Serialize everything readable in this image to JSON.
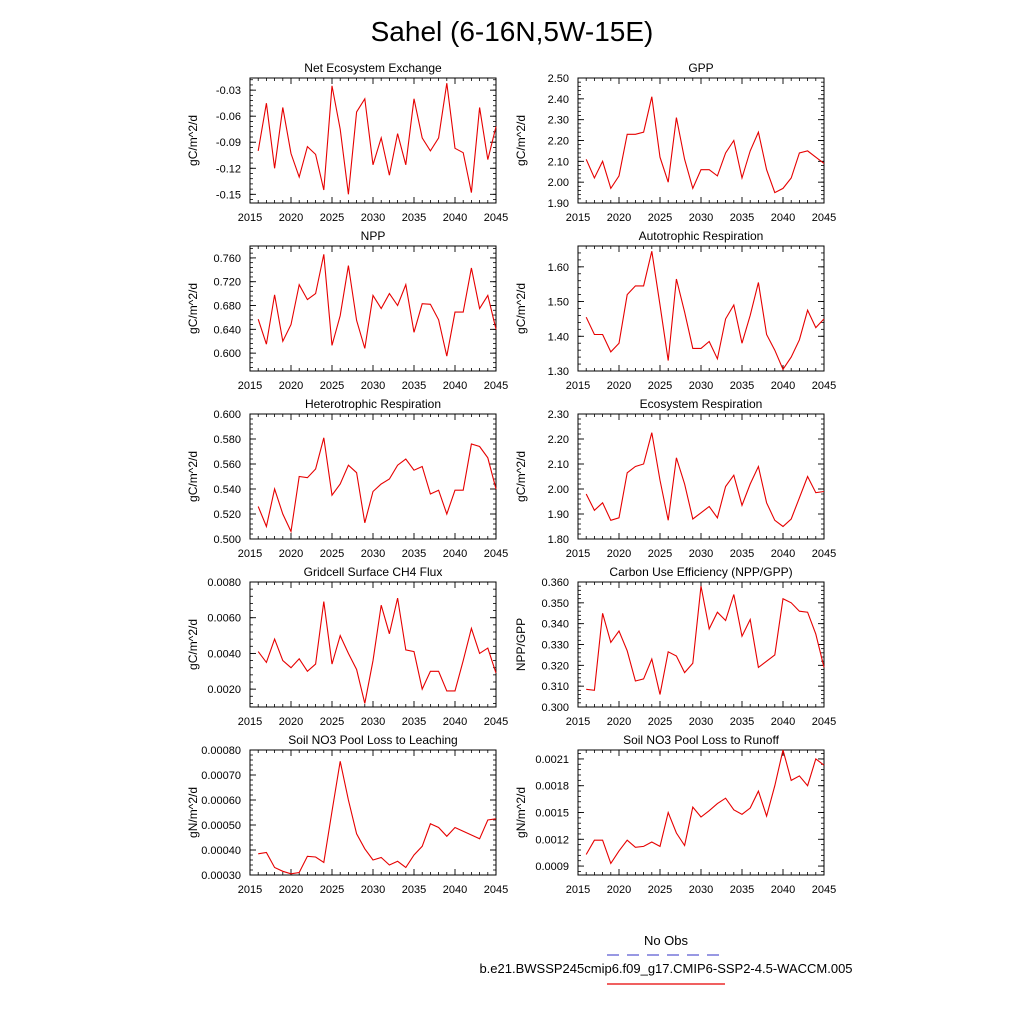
{
  "page_title": "Sahel (6-16N,5W-15E)",
  "legend": {
    "obs_label": "No Obs",
    "obs_color": "#5a5ad2",
    "model_label": "b.e21.BWSSP245cmip6.f09_g17.CMIP6-SSP2-4.5-WACCM.005",
    "model_color": "#e60000"
  },
  "chart_data": [
    {
      "type": "line",
      "title": "Net Ecosystem Exchange",
      "ylabel": "gC/m^2/d",
      "xlim": [
        2015,
        2045
      ],
      "ylim": [
        -0.16,
        -0.016
      ],
      "xticks": [
        2015,
        2020,
        2025,
        2030,
        2035,
        2040,
        2045
      ],
      "xtick_labels": [
        "2015",
        "2020",
        "2025",
        "2030",
        "2035",
        "2040",
        "2045"
      ],
      "yticks": [
        -0.03,
        -0.06,
        -0.09,
        -0.12,
        -0.15
      ],
      "ytick_labels": [
        "-0.03",
        "-0.06",
        "-0.09",
        "-0.12",
        "-0.15"
      ],
      "x": [
        2016,
        2017,
        2018,
        2019,
        2020,
        2021,
        2022,
        2023,
        2024,
        2025,
        2026,
        2027,
        2028,
        2029,
        2030,
        2031,
        2032,
        2033,
        2034,
        2035,
        2036,
        2037,
        2038,
        2039,
        2040,
        2041,
        2042,
        2043,
        2044,
        2045
      ],
      "series": [
        {
          "name": "b.e21.BWSSP245cmip6.f09_g17.CMIP6-SSP2-4.5-WACCM.005",
          "values": [
            -0.1,
            -0.045,
            -0.12,
            -0.05,
            -0.103,
            -0.13,
            -0.095,
            -0.104,
            -0.145,
            -0.025,
            -0.075,
            -0.15,
            -0.055,
            -0.04,
            -0.116,
            -0.085,
            -0.128,
            -0.08,
            -0.116,
            -0.04,
            -0.085,
            -0.1,
            -0.085,
            -0.022,
            -0.097,
            -0.102,
            -0.148,
            -0.05,
            -0.11,
            -0.072
          ]
        }
      ]
    },
    {
      "type": "line",
      "title": "GPP",
      "ylabel": "gC/m^2/d",
      "xlim": [
        2015,
        2045
      ],
      "ylim": [
        1.9,
        2.5
      ],
      "xticks": [
        2015,
        2020,
        2025,
        2030,
        2035,
        2040,
        2045
      ],
      "xtick_labels": [
        "2015",
        "2020",
        "2025",
        "2030",
        "2035",
        "2040",
        "2045"
      ],
      "yticks": [
        1.9,
        2.0,
        2.1,
        2.2,
        2.3,
        2.4,
        2.5
      ],
      "ytick_labels": [
        "1.90",
        "2.00",
        "2.10",
        "2.20",
        "2.30",
        "2.40",
        "2.50"
      ],
      "x": [
        2016,
        2017,
        2018,
        2019,
        2020,
        2021,
        2022,
        2023,
        2024,
        2025,
        2026,
        2027,
        2028,
        2029,
        2030,
        2031,
        2032,
        2033,
        2034,
        2035,
        2036,
        2037,
        2038,
        2039,
        2040,
        2041,
        2042,
        2043,
        2044,
        2045
      ],
      "series": [
        {
          "name": "b.e21.BWSSP245cmip6.f09_g17.CMIP6-SSP2-4.5-WACCM.005",
          "values": [
            2.11,
            2.02,
            2.1,
            1.97,
            2.03,
            2.23,
            2.23,
            2.24,
            2.41,
            2.12,
            2.0,
            2.31,
            2.11,
            1.97,
            2.06,
            2.06,
            2.03,
            2.14,
            2.2,
            2.02,
            2.15,
            2.24,
            2.06,
            1.95,
            1.97,
            2.02,
            2.14,
            2.15,
            2.12,
            2.09
          ]
        }
      ]
    },
    {
      "type": "line",
      "title": "NPP",
      "ylabel": "gC/m^2/d",
      "xlim": [
        2015,
        2045
      ],
      "ylim": [
        0.57,
        0.78
      ],
      "xticks": [
        2015,
        2020,
        2025,
        2030,
        2035,
        2040,
        2045
      ],
      "xtick_labels": [
        "2015",
        "2020",
        "2025",
        "2030",
        "2035",
        "2040",
        "2045"
      ],
      "yticks": [
        0.6,
        0.64,
        0.68,
        0.72,
        0.76
      ],
      "ytick_labels": [
        "0.600",
        "0.640",
        "0.680",
        "0.720",
        "0.760"
      ],
      "x": [
        2016,
        2017,
        2018,
        2019,
        2020,
        2021,
        2022,
        2023,
        2024,
        2025,
        2026,
        2027,
        2028,
        2029,
        2030,
        2031,
        2032,
        2033,
        2034,
        2035,
        2036,
        2037,
        2038,
        2039,
        2040,
        2041,
        2042,
        2043,
        2044,
        2045
      ],
      "series": [
        {
          "name": "b.e21.BWSSP245cmip6.f09_g17.CMIP6-SSP2-4.5-WACCM.005",
          "values": [
            0.657,
            0.615,
            0.698,
            0.62,
            0.648,
            0.715,
            0.69,
            0.7,
            0.766,
            0.613,
            0.663,
            0.747,
            0.655,
            0.608,
            0.697,
            0.675,
            0.7,
            0.68,
            0.715,
            0.635,
            0.683,
            0.682,
            0.656,
            0.595,
            0.669,
            0.669,
            0.743,
            0.675,
            0.697,
            0.64
          ]
        }
      ]
    },
    {
      "type": "line",
      "title": "Autotrophic Respiration",
      "ylabel": "gC/m^2/d",
      "xlim": [
        2015,
        2045
      ],
      "ylim": [
        1.3,
        1.66
      ],
      "xticks": [
        2015,
        2020,
        2025,
        2030,
        2035,
        2040,
        2045
      ],
      "xtick_labels": [
        "2015",
        "2020",
        "2025",
        "2030",
        "2035",
        "2040",
        "2045"
      ],
      "yticks": [
        1.3,
        1.4,
        1.5,
        1.6
      ],
      "ytick_labels": [
        "1.30",
        "1.40",
        "1.50",
        "1.60"
      ],
      "x": [
        2016,
        2017,
        2018,
        2019,
        2020,
        2021,
        2022,
        2023,
        2024,
        2025,
        2026,
        2027,
        2028,
        2029,
        2030,
        2031,
        2032,
        2033,
        2034,
        2035,
        2036,
        2037,
        2038,
        2039,
        2040,
        2041,
        2042,
        2043,
        2044,
        2045
      ],
      "series": [
        {
          "name": "b.e21.BWSSP245cmip6.f09_g17.CMIP6-SSP2-4.5-WACCM.005",
          "values": [
            1.455,
            1.405,
            1.405,
            1.355,
            1.38,
            1.52,
            1.545,
            1.545,
            1.645,
            1.49,
            1.33,
            1.565,
            1.47,
            1.365,
            1.365,
            1.385,
            1.335,
            1.45,
            1.49,
            1.38,
            1.46,
            1.555,
            1.405,
            1.36,
            1.305,
            1.34,
            1.39,
            1.475,
            1.425,
            1.45
          ]
        }
      ]
    },
    {
      "type": "line",
      "title": "Heterotrophic Respiration",
      "ylabel": "gC/m^2/d",
      "xlim": [
        2015,
        2045
      ],
      "ylim": [
        0.5,
        0.6
      ],
      "xticks": [
        2015,
        2020,
        2025,
        2030,
        2035,
        2040,
        2045
      ],
      "xtick_labels": [
        "2015",
        "2020",
        "2025",
        "2030",
        "2035",
        "2040",
        "2045"
      ],
      "yticks": [
        0.5,
        0.52,
        0.54,
        0.56,
        0.58,
        0.6
      ],
      "ytick_labels": [
        "0.500",
        "0.520",
        "0.540",
        "0.560",
        "0.580",
        "0.600"
      ],
      "x": [
        2016,
        2017,
        2018,
        2019,
        2020,
        2021,
        2022,
        2023,
        2024,
        2025,
        2026,
        2027,
        2028,
        2029,
        2030,
        2031,
        2032,
        2033,
        2034,
        2035,
        2036,
        2037,
        2038,
        2039,
        2040,
        2041,
        2042,
        2043,
        2044,
        2045
      ],
      "series": [
        {
          "name": "b.e21.BWSSP245cmip6.f09_g17.CMIP6-SSP2-4.5-WACCM.005",
          "values": [
            0.526,
            0.51,
            0.54,
            0.52,
            0.506,
            0.55,
            0.549,
            0.556,
            0.581,
            0.535,
            0.544,
            0.559,
            0.553,
            0.513,
            0.538,
            0.544,
            0.548,
            0.559,
            0.564,
            0.555,
            0.558,
            0.536,
            0.539,
            0.52,
            0.539,
            0.539,
            0.576,
            0.574,
            0.565,
            0.54
          ]
        }
      ]
    },
    {
      "type": "line",
      "title": "Ecosystem Respiration",
      "ylabel": "gC/m^2/d",
      "xlim": [
        2015,
        2045
      ],
      "ylim": [
        1.8,
        2.3
      ],
      "xticks": [
        2015,
        2020,
        2025,
        2030,
        2035,
        2040,
        2045
      ],
      "xtick_labels": [
        "2015",
        "2020",
        "2025",
        "2030",
        "2035",
        "2040",
        "2045"
      ],
      "yticks": [
        1.8,
        1.9,
        2.0,
        2.1,
        2.2,
        2.3
      ],
      "ytick_labels": [
        "1.80",
        "1.90",
        "2.00",
        "2.10",
        "2.20",
        "2.30"
      ],
      "x": [
        2016,
        2017,
        2018,
        2019,
        2020,
        2021,
        2022,
        2023,
        2024,
        2025,
        2026,
        2027,
        2028,
        2029,
        2030,
        2031,
        2032,
        2033,
        2034,
        2035,
        2036,
        2037,
        2038,
        2039,
        2040,
        2041,
        2042,
        2043,
        2044,
        2045
      ],
      "series": [
        {
          "name": "b.e21.BWSSP245cmip6.f09_g17.CMIP6-SSP2-4.5-WACCM.005",
          "values": [
            1.98,
            1.915,
            1.945,
            1.875,
            1.885,
            2.065,
            2.09,
            2.1,
            2.225,
            2.035,
            1.875,
            2.125,
            2.02,
            1.88,
            1.905,
            1.93,
            1.885,
            2.01,
            2.055,
            1.935,
            2.02,
            2.09,
            1.945,
            1.875,
            1.85,
            1.88,
            1.965,
            2.05,
            1.985,
            1.99
          ]
        }
      ]
    },
    {
      "type": "line",
      "title": "Gridcell Surface CH4 Flux",
      "ylabel": "gC/m^2/d",
      "xlim": [
        2015,
        2045
      ],
      "ylim": [
        0.001,
        0.008
      ],
      "xticks": [
        2015,
        2020,
        2025,
        2030,
        2035,
        2040,
        2045
      ],
      "xtick_labels": [
        "2015",
        "2020",
        "2025",
        "2030",
        "2035",
        "2040",
        "2045"
      ],
      "yticks": [
        0.002,
        0.004,
        0.006,
        0.008
      ],
      "ytick_labels": [
        "0.0020",
        "0.0040",
        "0.0060",
        "0.0080"
      ],
      "x": [
        2016,
        2017,
        2018,
        2019,
        2020,
        2021,
        2022,
        2023,
        2024,
        2025,
        2026,
        2027,
        2028,
        2029,
        2030,
        2031,
        2032,
        2033,
        2034,
        2035,
        2036,
        2037,
        2038,
        2039,
        2040,
        2041,
        2042,
        2043,
        2044,
        2045
      ],
      "series": [
        {
          "name": "b.e21.BWSSP245cmip6.f09_g17.CMIP6-SSP2-4.5-WACCM.005",
          "values": [
            0.0041,
            0.0035,
            0.0048,
            0.0036,
            0.0032,
            0.0037,
            0.003,
            0.0034,
            0.0069,
            0.0034,
            0.005,
            0.004,
            0.0031,
            0.0012,
            0.0036,
            0.0067,
            0.0051,
            0.0071,
            0.0042,
            0.0041,
            0.002,
            0.003,
            0.003,
            0.0019,
            0.0019,
            0.0036,
            0.0054,
            0.004,
            0.0043,
            0.0029
          ]
        }
      ]
    },
    {
      "type": "line",
      "title": "Carbon Use Efficiency (NPP/GPP)",
      "ylabel": "NPP/GPP",
      "xlim": [
        2015,
        2045
      ],
      "ylim": [
        0.3,
        0.36
      ],
      "xticks": [
        2015,
        2020,
        2025,
        2030,
        2035,
        2040,
        2045
      ],
      "xtick_labels": [
        "2015",
        "2020",
        "2025",
        "2030",
        "2035",
        "2040",
        "2045"
      ],
      "yticks": [
        0.3,
        0.31,
        0.32,
        0.33,
        0.34,
        0.35,
        0.36
      ],
      "ytick_labels": [
        "0.300",
        "0.310",
        "0.320",
        "0.330",
        "0.340",
        "0.350",
        "0.360"
      ],
      "x": [
        2016,
        2017,
        2018,
        2019,
        2020,
        2021,
        2022,
        2023,
        2024,
        2025,
        2026,
        2027,
        2028,
        2029,
        2030,
        2031,
        2032,
        2033,
        2034,
        2035,
        2036,
        2037,
        2038,
        2039,
        2040,
        2041,
        2042,
        2043,
        2044,
        2045
      ],
      "series": [
        {
          "name": "b.e21.BWSSP245cmip6.f09_g17.CMIP6-SSP2-4.5-WACCM.005",
          "values": [
            0.3085,
            0.308,
            0.345,
            0.331,
            0.3365,
            0.327,
            0.3125,
            0.3135,
            0.323,
            0.306,
            0.3265,
            0.3245,
            0.3165,
            0.321,
            0.358,
            0.3375,
            0.3455,
            0.3415,
            0.354,
            0.334,
            0.342,
            0.319,
            0.322,
            0.325,
            0.352,
            0.35,
            0.346,
            0.3455,
            0.335,
            0.319
          ]
        }
      ]
    },
    {
      "type": "line",
      "title": "Soil NO3 Pool Loss to Leaching",
      "ylabel": "gN/m^2/d",
      "xlim": [
        2015,
        2045
      ],
      "ylim": [
        0.0003,
        0.0008
      ],
      "xticks": [
        2015,
        2020,
        2025,
        2030,
        2035,
        2040,
        2045
      ],
      "xtick_labels": [
        "2015",
        "2020",
        "2025",
        "2030",
        "2035",
        "2040",
        "2045"
      ],
      "yticks": [
        0.0003,
        0.0004,
        0.0005,
        0.0006,
        0.0007,
        0.0008
      ],
      "ytick_labels": [
        "0.00030",
        "0.00040",
        "0.00050",
        "0.00060",
        "0.00070",
        "0.00080"
      ],
      "x": [
        2016,
        2017,
        2018,
        2019,
        2020,
        2021,
        2022,
        2023,
        2024,
        2025,
        2026,
        2027,
        2028,
        2029,
        2030,
        2031,
        2032,
        2033,
        2034,
        2035,
        2036,
        2037,
        2038,
        2039,
        2040,
        2041,
        2042,
        2043,
        2044,
        2045
      ],
      "series": [
        {
          "name": "b.e21.BWSSP245cmip6.f09_g17.CMIP6-SSP2-4.5-WACCM.005",
          "values": [
            0.000385,
            0.00039,
            0.00033,
            0.000315,
            0.000305,
            0.00031,
            0.000375,
            0.000372,
            0.00035,
            0.000555,
            0.000755,
            0.0006,
            0.000465,
            0.000405,
            0.00036,
            0.00037,
            0.00034,
            0.000355,
            0.00033,
            0.00038,
            0.000415,
            0.000505,
            0.00049,
            0.000455,
            0.00049,
            0.000475,
            0.00046,
            0.000445,
            0.00052,
            0.000525
          ]
        }
      ]
    },
    {
      "type": "line",
      "title": "Soil NO3 Pool Loss to Runoff",
      "ylabel": "gN/m^2/d",
      "xlim": [
        2015,
        2045
      ],
      "ylim": [
        0.0008,
        0.0022
      ],
      "xticks": [
        2015,
        2020,
        2025,
        2030,
        2035,
        2040,
        2045
      ],
      "xtick_labels": [
        "2015",
        "2020",
        "2025",
        "2030",
        "2035",
        "2040",
        "2045"
      ],
      "yticks": [
        0.0009,
        0.0012,
        0.0015,
        0.0018,
        0.0021
      ],
      "ytick_labels": [
        "0.0009",
        "0.0012",
        "0.0015",
        "0.0018",
        "0.0021"
      ],
      "x": [
        2016,
        2017,
        2018,
        2019,
        2020,
        2021,
        2022,
        2023,
        2024,
        2025,
        2026,
        2027,
        2028,
        2029,
        2030,
        2031,
        2032,
        2033,
        2034,
        2035,
        2036,
        2037,
        2038,
        2039,
        2040,
        2041,
        2042,
        2043,
        2044,
        2045
      ],
      "series": [
        {
          "name": "b.e21.BWSSP245cmip6.f09_g17.CMIP6-SSP2-4.5-WACCM.005",
          "values": [
            0.00103,
            0.00119,
            0.00119,
            0.00093,
            0.00107,
            0.00119,
            0.00111,
            0.00112,
            0.00117,
            0.00112,
            0.0015,
            0.00127,
            0.00113,
            0.00156,
            0.00145,
            0.00152,
            0.0016,
            0.00166,
            0.00153,
            0.00148,
            0.00155,
            0.00174,
            0.00146,
            0.0018,
            0.0022,
            0.00186,
            0.00191,
            0.0018,
            0.0021,
            0.00203
          ]
        }
      ]
    }
  ]
}
